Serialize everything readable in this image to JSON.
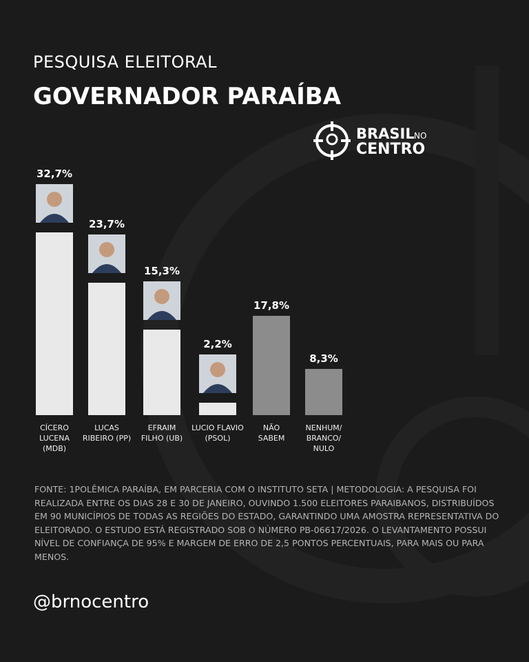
{
  "chart_data": {
    "type": "bar",
    "kicker": "PESQUISA ELEITORAL",
    "title": "GOVERNADOR PARAÍBA",
    "brand": {
      "line1": "BRASIL",
      "small": "NO",
      "line2": "CENTRO"
    },
    "categories": [
      [
        "CÍCERO",
        "LUCENA",
        "(MDB)"
      ],
      [
        "LUCAS",
        "RIBEIRO (PP)"
      ],
      [
        "EFRAIM",
        "FILHO (UB)"
      ],
      [
        "LUCIO FLAVIO",
        "(PSOL)"
      ],
      [
        "NÃO",
        "SABEM"
      ],
      [
        "NENHUM/",
        "BRANCO/",
        "NULO"
      ]
    ],
    "values": [
      32.7,
      23.7,
      15.3,
      2.2,
      17.8,
      8.3
    ],
    "value_labels": [
      "32,7%",
      "23,7%",
      "15,3%",
      "2,2%",
      "17,8%",
      "8,3%"
    ],
    "colors": [
      "#e9e9e9",
      "#e9e9e9",
      "#e9e9e9",
      "#e9e9e9",
      "#8c8c8c",
      "#8c8c8c"
    ],
    "photos": [
      true,
      true,
      true,
      true,
      false,
      false
    ],
    "source": "FONTE: 1POLÊMICA PARAÍBA, EM PARCERIA COM O INSTITUTO SETA | METODOLOGIA: A PESQUISA FOI REALIZADA ENTRE OS DIAS 28 E 30 DE JANEIRO, OUVINDO 1.500 ELEITORES PARAIBANOS, DISTRIBUÍDOS EM 90 MUNICÍPIOS DE TODAS AS REGIÕES DO ESTADO, GARANTINDO UMA AMOSTRA REPRESENTATIVA DO ELEITORADO. O ESTUDO ESTÁ REGISTRADO SOB O NÚMERO PB-06617/2026. O LEVANTAMENTO POSSUI NÍVEL DE CONFIANÇA DE 95% E MARGEM DE ERRO DE 2,5 PONTOS PERCENTUAIS, PARA MAIS OU PARA MENOS.",
    "handle": "@brnocentro"
  }
}
